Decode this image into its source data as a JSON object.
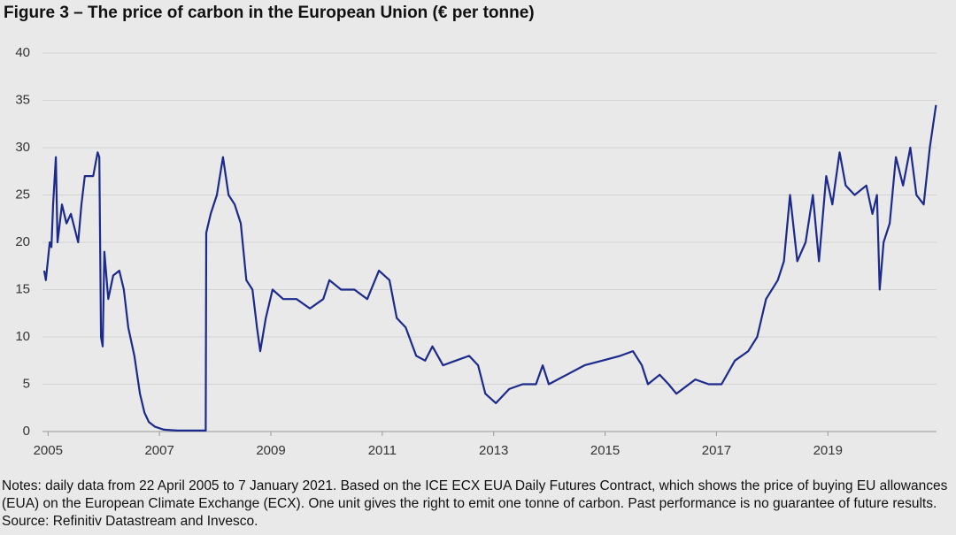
{
  "chart_data": {
    "type": "line",
    "title": "Figure 3 – The price of carbon in the European Union (€ per tonne)",
    "notes": "Notes: daily data from 22 April 2005 to 7 January 2021. Based on the ICE ECX EUA Daily Futures Contract, which shows the price of buying EU allowances (EUA) on the European Climate Exchange (ECX). One unit gives the right to emit one tonne of carbon. Past performance is no guarantee of future results. Source: Refinitiv Datastream and Invesco.",
    "xlim": [
      2004.9,
      2020.95
    ],
    "xticks": [
      2005,
      2007,
      2009,
      2011,
      2013,
      2015,
      2017,
      2019
    ],
    "ylim": [
      0,
      40
    ],
    "yticks": [
      0,
      5,
      10,
      15,
      20,
      25,
      30,
      35,
      40
    ],
    "grid": true,
    "series": [
      {
        "color": "#1c2a8c",
        "x": [
          2004.93,
          2004.96,
          2005.03,
          2005.06,
          2005.09,
          2005.14,
          2005.17,
          2005.25,
          2005.33,
          2005.41,
          2005.54,
          2005.6,
          2005.66,
          2005.81,
          2005.89,
          2005.92,
          2005.95,
          2005.98,
          2006.01,
          2006.08,
          2006.17,
          2006.28,
          2006.36,
          2006.44,
          2006.55,
          2006.65,
          2006.73,
          2006.81,
          2006.92,
          2007.08,
          2007.32,
          2007.83,
          2007.84,
          2007.92,
          2008.03,
          2008.14,
          2008.24,
          2008.35,
          2008.46,
          2008.56,
          2008.67,
          2008.75,
          2008.81,
          2008.91,
          2009.03,
          2009.22,
          2009.46,
          2009.7,
          2009.94,
          2010.05,
          2010.26,
          2010.5,
          2010.73,
          2010.94,
          2011.13,
          2011.26,
          2011.42,
          2011.61,
          2011.77,
          2011.9,
          2012.09,
          2012.32,
          2012.56,
          2012.72,
          2012.85,
          2013.04,
          2013.28,
          2013.52,
          2013.76,
          2013.88,
          2013.99,
          2014.31,
          2014.63,
          2014.95,
          2015.27,
          2015.5,
          2015.66,
          2015.77,
          2015.98,
          2016.14,
          2016.28,
          2016.62,
          2016.86,
          2017.09,
          2017.33,
          2017.57,
          2017.73,
          2017.89,
          2018.1,
          2018.21,
          2018.32,
          2018.45,
          2018.6,
          2018.73,
          2018.84,
          2018.97,
          2019.08,
          2019.21,
          2019.32,
          2019.48,
          2019.69,
          2019.8,
          2019.88,
          2019.93,
          2020.0,
          2020.11,
          2020.22,
          2020.35,
          2020.48,
          2020.59,
          2020.72,
          2020.83,
          2020.94
        ],
        "values": [
          17,
          16,
          20,
          19.5,
          24,
          29,
          20,
          24,
          22,
          23,
          20,
          24,
          27,
          27,
          29.5,
          29,
          10,
          9,
          19,
          14,
          16.5,
          17,
          15,
          11,
          8,
          4,
          2,
          1,
          0.5,
          0.2,
          0.1,
          0.1,
          21,
          23,
          25,
          29,
          25,
          24,
          22,
          16,
          15,
          11,
          8.5,
          12,
          15,
          14,
          14,
          13,
          14,
          16,
          15,
          15,
          14,
          17,
          16,
          12,
          11,
          8,
          7.5,
          9,
          7,
          7.5,
          8,
          7,
          4,
          3,
          4.5,
          5,
          5,
          7,
          5,
          6,
          7,
          7.5,
          8,
          8.5,
          7,
          5,
          6,
          5,
          4,
          5.5,
          5,
          5,
          7.5,
          8.5,
          10,
          14,
          16,
          18,
          25,
          18,
          20,
          25,
          18,
          27,
          24,
          29.5,
          26,
          25,
          26,
          23,
          25,
          15,
          20,
          22,
          29,
          26,
          30,
          25,
          24,
          30,
          34.5
        ]
      }
    ]
  }
}
